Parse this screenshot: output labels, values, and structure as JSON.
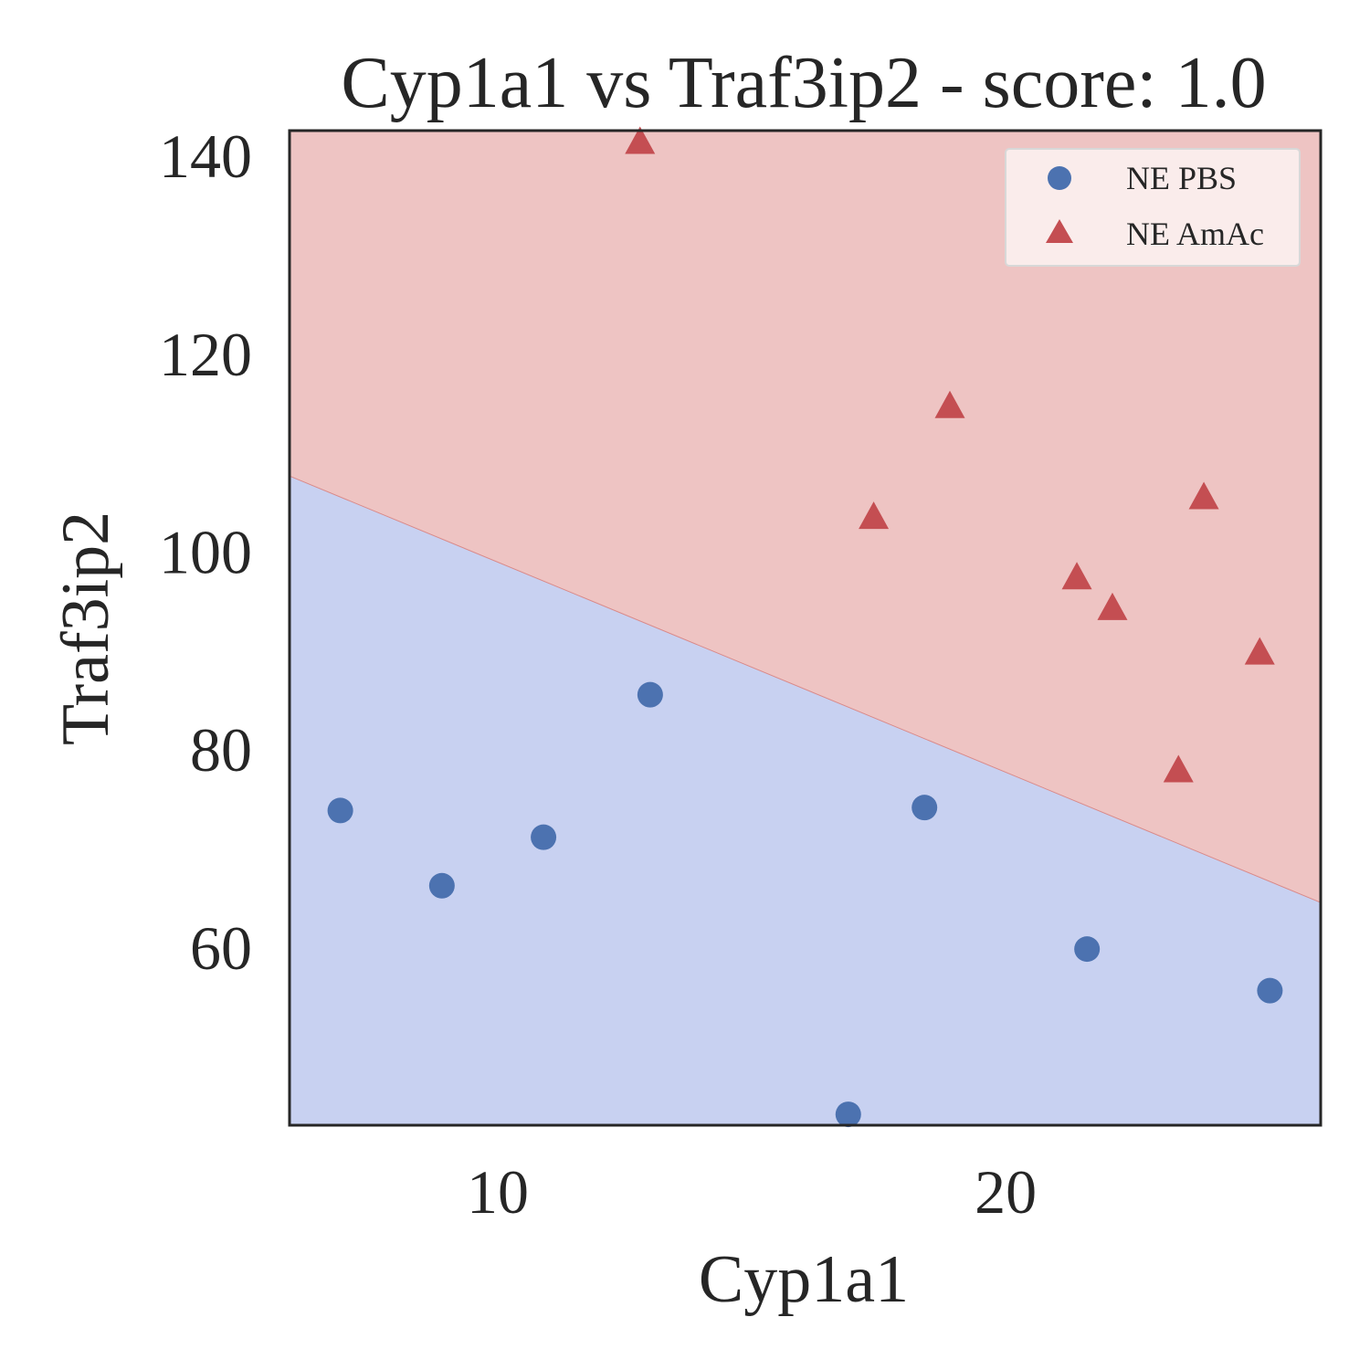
{
  "chart_data": {
    "type": "scatter",
    "title": "Cyp1a1 vs Traf3ip2 - score: 1.0",
    "xlabel": "Cyp1a1",
    "ylabel": "Traf3ip2",
    "xlim": [
      5.9,
      26.2
    ],
    "ylim": [
      42,
      142.5
    ],
    "xticks": [
      10,
      20
    ],
    "yticks": [
      60,
      80,
      100,
      120,
      140
    ],
    "grid": false,
    "legend_position": "top-right",
    "decision_boundary": {
      "points": [
        [
          5.9,
          107.6
        ],
        [
          26.2,
          64.5
        ]
      ],
      "region_above": "NE AmAc",
      "region_below": "NE PBS"
    },
    "series": [
      {
        "name": "NE PBS",
        "marker": "circle",
        "color": "#4c72b0",
        "region_color": "#c8d1f1",
        "points": [
          [
            6.9,
            73.8
          ],
          [
            8.9,
            66.2
          ],
          [
            10.9,
            71.1
          ],
          [
            13.0,
            85.5
          ],
          [
            16.9,
            43.1
          ],
          [
            18.4,
            74.1
          ],
          [
            21.6,
            59.8
          ],
          [
            25.2,
            55.6
          ]
        ]
      },
      {
        "name": "NE AmAc",
        "marker": "triangle",
        "color": "#c44e52",
        "region_color": "#eec4c3",
        "points": [
          [
            12.8,
            141.2
          ],
          [
            17.4,
            103.3
          ],
          [
            18.9,
            114.5
          ],
          [
            21.4,
            97.2
          ],
          [
            22.1,
            94.1
          ],
          [
            23.4,
            77.7
          ],
          [
            23.9,
            105.3
          ],
          [
            25.0,
            89.6
          ]
        ]
      }
    ]
  }
}
